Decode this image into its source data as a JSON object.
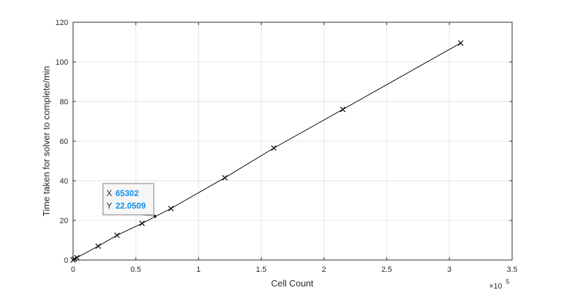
{
  "chart_data": {
    "type": "line",
    "xlabel": "Cell Count",
    "ylabel": "Time taken for solver to complete/min",
    "x_exponent_label": "×10",
    "x_exponent_power": "5",
    "xlim": [
      0,
      350000
    ],
    "ylim": [
      0,
      120
    ],
    "xticks": [
      0,
      50000,
      100000,
      150000,
      200000,
      250000,
      300000,
      350000
    ],
    "xtick_labels": [
      "0",
      "0.5",
      "1",
      "1.5",
      "2",
      "2.5",
      "3",
      "3.5"
    ],
    "yticks": [
      0,
      20,
      40,
      60,
      80,
      100,
      120
    ],
    "ytick_labels": [
      "0",
      "20",
      "40",
      "60",
      "80",
      "100",
      "120"
    ],
    "grid": true,
    "series": [
      {
        "marker": "x",
        "color": "#000000",
        "x": [
          0,
          1000,
          3000,
          20000,
          35000,
          55000,
          78000,
          121000,
          160000,
          215000,
          309000
        ],
        "y": [
          0,
          0.5,
          1.2,
          7,
          12.5,
          18.5,
          26,
          41.5,
          56.5,
          76,
          109.5
        ]
      }
    ],
    "datatip": {
      "x_label": "X",
      "x_value": "65302",
      "y_label": "Y",
      "y_value": "22.0509",
      "x": 65302,
      "y": 22.0509,
      "value_color": "#0a8ef0"
    }
  }
}
